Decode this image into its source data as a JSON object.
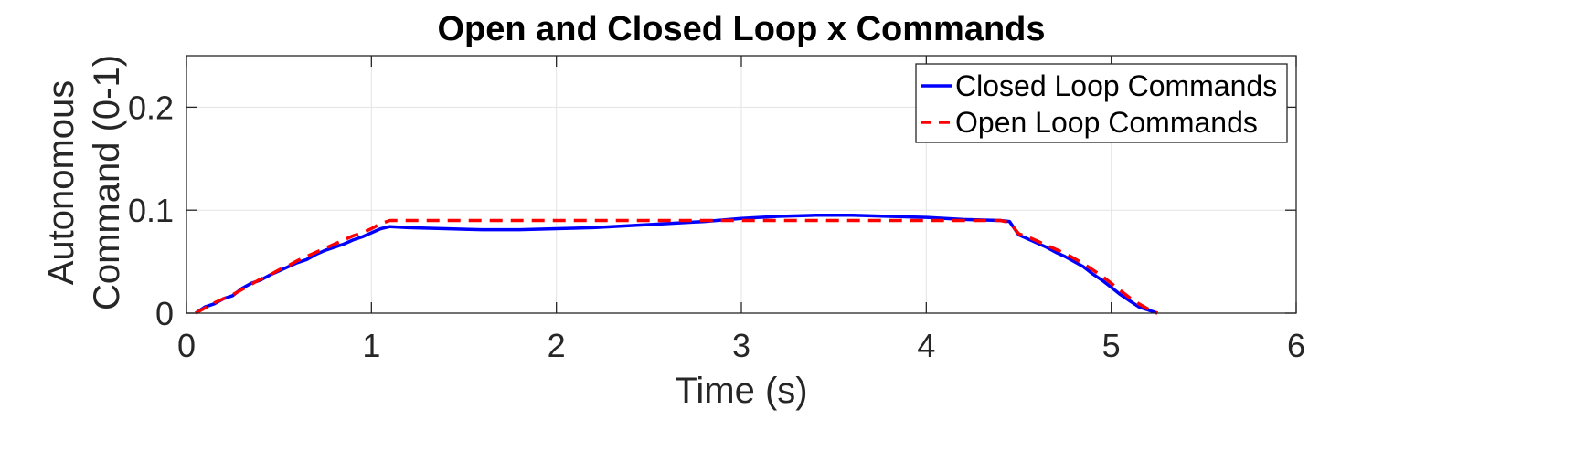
{
  "chart_data": {
    "type": "line",
    "title": "Open and Closed Loop x Commands",
    "xlabel": "Time (s)",
    "ylabel": [
      "Autonomous",
      "Command (0-1)"
    ],
    "xlim": [
      0,
      6
    ],
    "ylim": [
      0,
      0.25
    ],
    "xticks": [
      0,
      1,
      2,
      3,
      4,
      5,
      6
    ],
    "xtick_labels": [
      "0",
      "1",
      "2",
      "3",
      "4",
      "5",
      "6"
    ],
    "yticks": [
      0,
      0.1,
      0.2
    ],
    "ytick_labels": [
      "0",
      "0.1",
      "0.2"
    ],
    "grid": true,
    "legend_position": "top-right",
    "series": [
      {
        "name": "Closed Loop Commands",
        "color": "#0000ff",
        "style": "solid",
        "x": [
          0.05,
          0.1,
          0.15,
          0.2,
          0.25,
          0.3,
          0.35,
          0.4,
          0.45,
          0.5,
          0.55,
          0.6,
          0.65,
          0.7,
          0.75,
          0.8,
          0.85,
          0.9,
          0.95,
          1.0,
          1.05,
          1.1,
          1.2,
          1.4,
          1.6,
          1.8,
          2.0,
          2.2,
          2.4,
          2.6,
          2.8,
          3.0,
          3.2,
          3.4,
          3.6,
          3.8,
          4.0,
          4.2,
          4.4,
          4.45,
          4.5,
          4.55,
          4.6,
          4.65,
          4.7,
          4.75,
          4.8,
          4.85,
          4.9,
          4.95,
          5.0,
          5.05,
          5.1,
          5.15,
          5.2,
          5.25
        ],
        "y": [
          0.0,
          0.006,
          0.009,
          0.014,
          0.017,
          0.024,
          0.029,
          0.032,
          0.037,
          0.041,
          0.045,
          0.049,
          0.052,
          0.057,
          0.061,
          0.064,
          0.067,
          0.071,
          0.074,
          0.078,
          0.082,
          0.084,
          0.083,
          0.082,
          0.081,
          0.081,
          0.082,
          0.083,
          0.085,
          0.087,
          0.089,
          0.092,
          0.094,
          0.095,
          0.095,
          0.094,
          0.093,
          0.091,
          0.09,
          0.089,
          0.076,
          0.072,
          0.068,
          0.064,
          0.059,
          0.055,
          0.05,
          0.045,
          0.038,
          0.032,
          0.025,
          0.018,
          0.012,
          0.006,
          0.003,
          0.0
        ]
      },
      {
        "name": "Open Loop Commands",
        "color": "#ff0000",
        "style": "dashed",
        "x": [
          0.05,
          0.1,
          0.15,
          0.2,
          0.25,
          0.3,
          0.35,
          0.4,
          0.45,
          0.5,
          0.55,
          0.6,
          0.65,
          0.7,
          0.75,
          0.8,
          0.85,
          0.9,
          0.95,
          1.0,
          1.05,
          1.1,
          1.5,
          2.0,
          2.5,
          3.0,
          3.5,
          4.0,
          4.4,
          4.45,
          4.5,
          4.55,
          4.6,
          4.65,
          4.7,
          4.75,
          4.8,
          4.85,
          4.9,
          4.95,
          5.0,
          5.05,
          5.1,
          5.15,
          5.2,
          5.25
        ],
        "y": [
          0.0,
          0.005,
          0.01,
          0.014,
          0.018,
          0.023,
          0.028,
          0.033,
          0.037,
          0.042,
          0.046,
          0.051,
          0.055,
          0.059,
          0.063,
          0.067,
          0.071,
          0.075,
          0.078,
          0.082,
          0.087,
          0.09,
          0.09,
          0.09,
          0.09,
          0.09,
          0.09,
          0.09,
          0.09,
          0.088,
          0.077,
          0.074,
          0.07,
          0.066,
          0.062,
          0.058,
          0.053,
          0.048,
          0.042,
          0.036,
          0.029,
          0.022,
          0.015,
          0.009,
          0.004,
          0.0
        ]
      }
    ]
  }
}
